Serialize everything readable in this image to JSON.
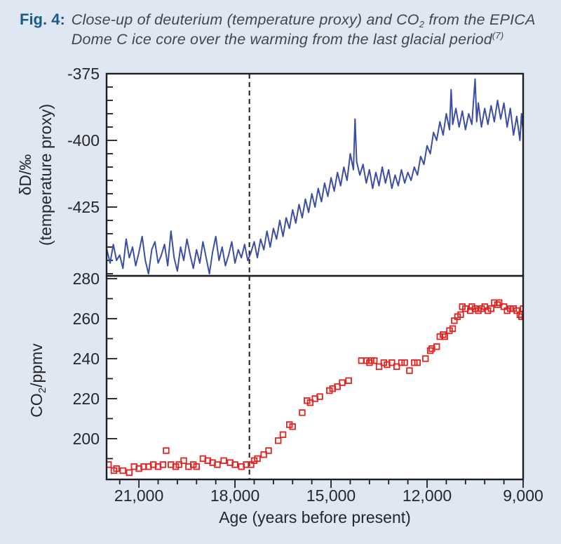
{
  "figure": {
    "label": "Fig. 4:",
    "caption_line1_pre": "Close-up of deuterium (temperature proxy) and CO",
    "caption_sub": "2",
    "caption_line1_post": " from the EPICA",
    "caption_line2": "Dome C ice core over the warming from the last glacial period",
    "caption_ref": "(7)"
  },
  "colors": {
    "background": "#dfe7f2",
    "panel": "#ffffff",
    "axis": "#1e1e22",
    "deuterium_line": "#3b4ea3",
    "co2_marker": "#e5211f",
    "caption_label": "#1a5c88",
    "caption_text": "#41474e",
    "dashed_line": "#1a1a1a"
  },
  "x_axis": {
    "label": "Age (years before present)",
    "range": [
      22010,
      9000
    ],
    "reversed": true,
    "minor_step": 600,
    "ticks": [
      {
        "value": 21000,
        "label": "21,000"
      },
      {
        "value": 18000,
        "label": "18,000"
      },
      {
        "value": 15000,
        "label": "15,000"
      },
      {
        "value": 12000,
        "label": "12,000"
      },
      {
        "value": 9000,
        "label": "9,000"
      }
    ]
  },
  "annotation": {
    "dashed_line_age": 17550
  },
  "chart_data": [
    {
      "panel": "top",
      "type": "line",
      "series_name": "deuterium (temperature proxy)",
      "color": "#3b4ea3",
      "ylabel_line1": "δD/‰",
      "ylabel_line2": "(temperature proxy)",
      "yticks": [
        -375,
        -400,
        -425
      ],
      "y_minor_step": 5,
      "ylim": [
        -450.8,
        -375
      ],
      "x": [
        22000,
        21900,
        21800,
        21700,
        21600,
        21500,
        21400,
        21300,
        21200,
        21100,
        21000,
        20900,
        20800,
        20700,
        20600,
        20500,
        20400,
        20300,
        20200,
        20100,
        20000,
        19900,
        19800,
        19700,
        19600,
        19500,
        19400,
        19300,
        19200,
        19100,
        19000,
        18900,
        18800,
        18700,
        18600,
        18500,
        18400,
        18300,
        18200,
        18100,
        18000,
        17900,
        17800,
        17700,
        17600,
        17500,
        17400,
        17300,
        17200,
        17100,
        17000,
        16900,
        16800,
        16700,
        16600,
        16500,
        16400,
        16300,
        16200,
        16100,
        16000,
        15900,
        15800,
        15700,
        15600,
        15500,
        15400,
        15300,
        15200,
        15100,
        15000,
        14900,
        14800,
        14700,
        14600,
        14500,
        14400,
        14300,
        14250,
        14200,
        14100,
        14000,
        13900,
        13800,
        13700,
        13600,
        13500,
        13400,
        13300,
        13200,
        13100,
        13000,
        12900,
        12800,
        12700,
        12600,
        12500,
        12400,
        12300,
        12200,
        12100,
        12000,
        11900,
        11800,
        11700,
        11600,
        11500,
        11400,
        11300,
        11250,
        11200,
        11100,
        11000,
        10900,
        10800,
        10700,
        10600,
        10500,
        10450,
        10400,
        10300,
        10200,
        10100,
        10000,
        9900,
        9800,
        9700,
        9600,
        9500,
        9400,
        9300,
        9200,
        9100,
        9050,
        9000,
        8950
      ],
      "y": [
        -441,
        -446,
        -439,
        -445,
        -443,
        -448,
        -437,
        -444,
        -440,
        -447,
        -442,
        -436,
        -445,
        -450,
        -441,
        -438,
        -446,
        -443,
        -439,
        -447,
        -434,
        -444,
        -449,
        -440,
        -445,
        -437,
        -443,
        -448,
        -441,
        -446,
        -438,
        -444,
        -450,
        -442,
        -436,
        -445,
        -440,
        -447,
        -443,
        -438,
        -446,
        -441,
        -444,
        -439,
        -445,
        -442,
        -438,
        -444,
        -437,
        -441,
        -434,
        -440,
        -433,
        -437,
        -430,
        -436,
        -429,
        -433,
        -426,
        -431,
        -424,
        -429,
        -422,
        -427,
        -420,
        -425,
        -418,
        -423,
        -416,
        -421,
        -414,
        -419,
        -412,
        -417,
        -410,
        -415,
        -405,
        -411,
        -392,
        -408,
        -413,
        -409,
        -416,
        -411,
        -418,
        -412,
        -417,
        -410,
        -416,
        -411,
        -418,
        -413,
        -417,
        -411,
        -416,
        -412,
        -415,
        -410,
        -413,
        -406,
        -409,
        -402,
        -405,
        -397,
        -400,
        -393,
        -398,
        -390,
        -396,
        -381,
        -394,
        -388,
        -395,
        -389,
        -396,
        -390,
        -394,
        -377,
        -393,
        -386,
        -395,
        -388,
        -394,
        -387,
        -393,
        -385,
        -392,
        -386,
        -395,
        -388,
        -398,
        -391,
        -400,
        -390,
        -397,
        -396
      ]
    },
    {
      "panel": "bottom",
      "type": "scatter",
      "series_name": "CO2",
      "marker": "open-square",
      "color": "#e5211f",
      "ylabel_pre": "CO",
      "ylabel_sub": "2",
      "ylabel_post": "/ppmv",
      "yticks": [
        280,
        260,
        240,
        220,
        200
      ],
      "y_minor_step": 10,
      "ylim": [
        179.6,
        281.4
      ],
      "x": [
        21950,
        21780,
        21700,
        21500,
        21300,
        21150,
        21000,
        20850,
        20700,
        20550,
        20400,
        20250,
        20150,
        20000,
        19850,
        19750,
        19600,
        19450,
        19300,
        19200,
        19000,
        18850,
        18700,
        18550,
        18350,
        18150,
        18000,
        17800,
        17650,
        17500,
        17400,
        17300,
        17100,
        16950,
        16650,
        16500,
        16300,
        16200,
        15900,
        15750,
        15650,
        15500,
        15350,
        15050,
        14950,
        14800,
        14650,
        14450,
        14050,
        13900,
        13800,
        13750,
        13650,
        13500,
        13350,
        13250,
        13100,
        12950,
        12800,
        12700,
        12550,
        12400,
        12300,
        12050,
        11900,
        11850,
        11700,
        11600,
        11500,
        11450,
        11300,
        11200,
        11150,
        11050,
        10950,
        10900,
        10800,
        10650,
        10600,
        10500,
        10400,
        10300,
        10200,
        10100,
        10000,
        9900,
        9800,
        9750,
        9600,
        9500,
        9400,
        9300,
        9200,
        9100,
        9050,
        9000,
        8950
      ],
      "y": [
        187,
        184,
        185,
        184,
        183,
        186,
        185,
        186,
        186,
        187,
        186,
        187,
        194,
        187,
        186,
        187,
        189,
        186,
        187,
        186,
        190,
        189,
        188,
        187,
        189,
        188,
        187,
        186,
        187,
        187,
        189,
        190,
        192,
        194,
        199,
        202,
        207,
        206,
        213,
        219,
        218,
        220,
        221,
        224,
        225,
        226,
        228,
        229,
        239,
        239,
        238,
        239,
        239,
        236,
        238,
        237,
        238,
        236,
        238,
        238,
        234,
        238,
        238,
        240,
        244,
        245,
        246,
        251,
        252,
        251,
        254,
        255,
        259,
        261,
        262,
        266,
        265,
        264,
        266,
        265,
        264,
        265,
        266,
        264,
        265,
        268,
        267,
        268,
        266,
        264,
        265,
        265,
        264,
        262,
        261,
        265,
        261
      ]
    }
  ]
}
